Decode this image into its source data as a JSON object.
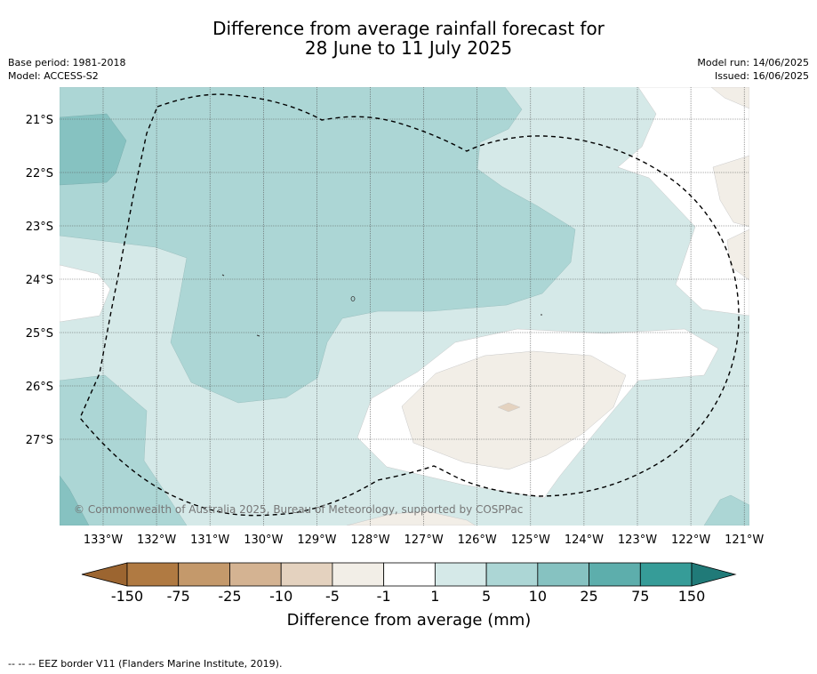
{
  "title": {
    "line1": "Difference from average rainfall forecast for",
    "line2": "28 June to 11 July 2025"
  },
  "meta": {
    "base_period": "Base period: 1981-2018",
    "model": "Model: ACCESS-S2",
    "model_run": "Model run: 14/06/2025",
    "issued": "Issued: 16/06/2025"
  },
  "map": {
    "lat_labels": [
      "21°S",
      "22°S",
      "23°S",
      "24°S",
      "25°S",
      "26°S",
      "27°S"
    ],
    "lon_labels": [
      "133°W",
      "132°W",
      "131°W",
      "130°W",
      "129°W",
      "128°W",
      "127°W",
      "126°W",
      "125°W",
      "124°W",
      "123°W",
      "122°W",
      "121°W"
    ],
    "copyright": "© Commonwealth of Australia 2025, Bureau of Meteorology, supported by COSPPac",
    "boundary_style": "dashed",
    "gridlines": true,
    "fill_colors": {
      "minus_5_to_minus_1": "#f2eee7",
      "minus_1_to_1": "#ffffff",
      "1_to_5": "#d5e9e8",
      "5_to_10": "#acd6d5",
      "10_to_25": "#86c2c1"
    }
  },
  "colorbar": {
    "label": "Difference from average (mm)",
    "ticks": [
      "-150",
      "-75",
      "-25",
      "-10",
      "-5",
      "-1",
      "1",
      "5",
      "10",
      "25",
      "75",
      "150"
    ],
    "colors": [
      "#9c6530",
      "#b07a42",
      "#c4996b",
      "#d4b392",
      "#e4d2bf",
      "#f2eee7",
      "#ffffff",
      "#d5e9e8",
      "#acd6d5",
      "#86c2c1",
      "#5daeac",
      "#369c98",
      "#207a78"
    ]
  },
  "footer": {
    "legend_text": "--  --  -- EEZ border V11 (Flanders Marine Institute, 2019)."
  }
}
